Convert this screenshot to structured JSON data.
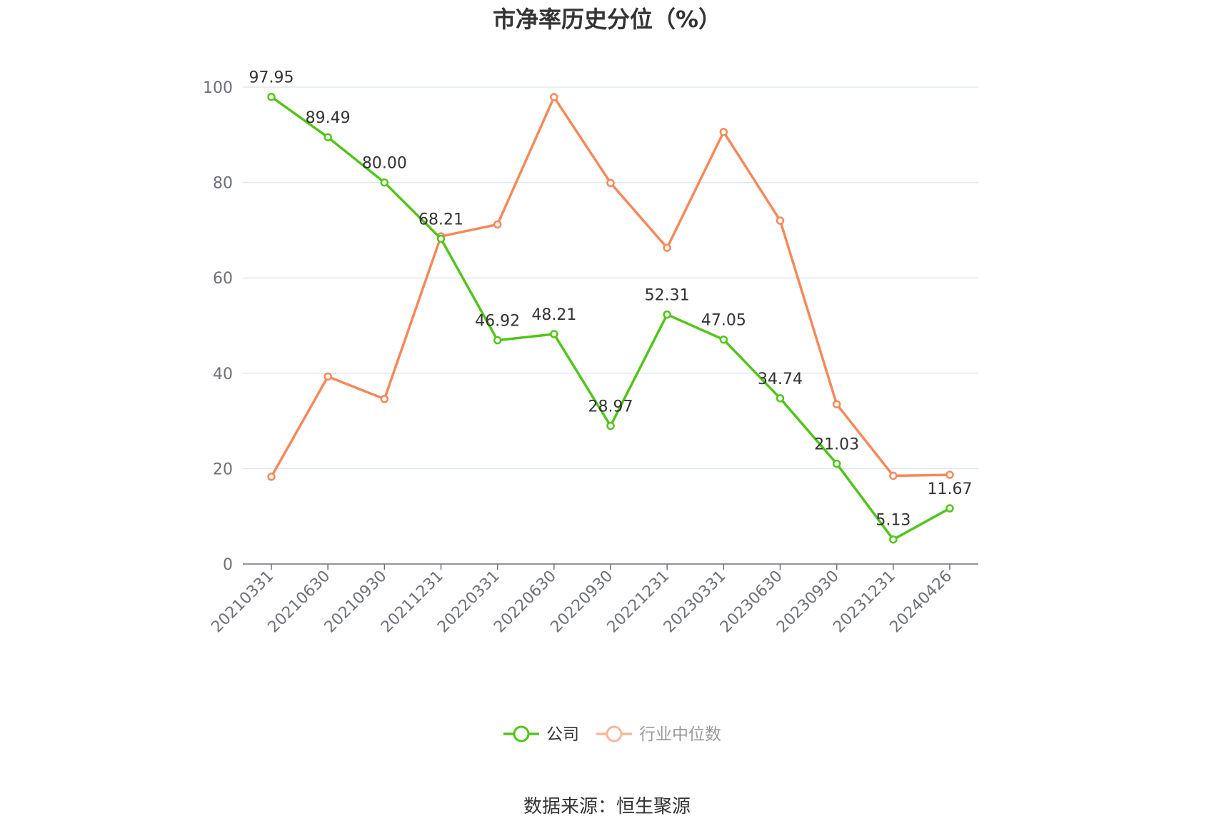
{
  "chart_data": {
    "type": "line",
    "title": "市净率历史分位（%）",
    "categories": [
      "20210331",
      "20210630",
      "20210930",
      "20211231",
      "20220331",
      "20220630",
      "20220930",
      "20221231",
      "20230331",
      "20230630",
      "20230930",
      "20231231",
      "20240426"
    ],
    "series": [
      {
        "name": "公司",
        "color": "#52c41a",
        "values": [
          97.95,
          89.49,
          80.0,
          68.21,
          46.92,
          48.21,
          28.97,
          52.31,
          47.05,
          34.74,
          21.03,
          5.13,
          11.67
        ],
        "labels": [
          "97.95",
          "89.49",
          "80.00",
          "68.21",
          "46.92",
          "48.21",
          "28.97",
          "52.31",
          "47.05",
          "34.74",
          "21.03",
          "5.13",
          "11.67"
        ]
      },
      {
        "name": "行业中位数",
        "color": "#f5895a",
        "values": [
          18.3,
          39.3,
          34.6,
          68.7,
          71.2,
          97.9,
          79.9,
          66.3,
          90.6,
          72.0,
          33.5,
          18.5,
          18.7
        ]
      }
    ],
    "ylim": [
      0,
      100
    ],
    "yticks": [
      0,
      20,
      40,
      60,
      80,
      100
    ],
    "grid": true,
    "legend_position": "bottom"
  },
  "legend": {
    "items": [
      {
        "name": "公司",
        "color": "#52c41a",
        "text_color": "#333333"
      },
      {
        "name": "行业中位数",
        "color": "#f9b79a",
        "text_color": "#999999"
      }
    ]
  },
  "source": "数据来源：恒生聚源"
}
